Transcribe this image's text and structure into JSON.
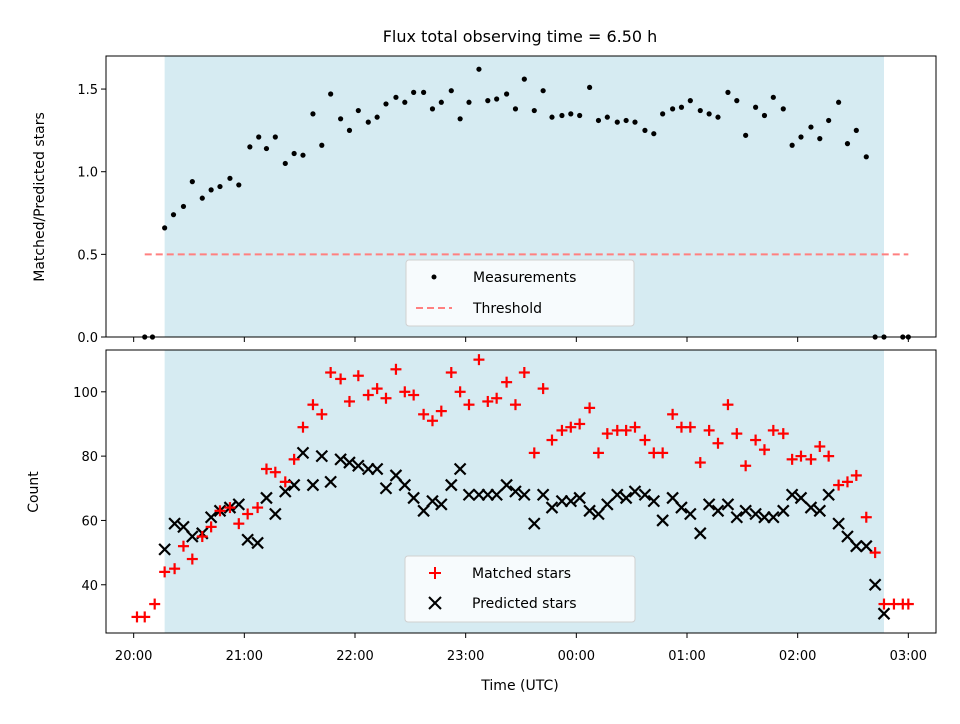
{
  "chart_data": [
    {
      "type": "scatter",
      "title": "Flux total observing time = 6.50 h",
      "xlabel": "",
      "ylabel": "Matched/Predicted stars",
      "ylim": [
        0,
        1.7
      ],
      "yticks": [
        "0.0",
        "0.5",
        "1.0",
        "1.5"
      ],
      "shaded_x_range_hours": [
        20.28,
        26.78
      ],
      "shade_color": "#add8e6",
      "series": [
        {
          "name": "Measurements",
          "marker": "dot",
          "color": "#000000",
          "x": [
            20.1,
            20.17,
            20.28,
            20.36,
            20.45,
            20.53,
            20.62,
            20.7,
            20.78,
            20.87,
            20.95,
            21.05,
            21.13,
            21.2,
            21.28,
            21.37,
            21.45,
            21.53,
            21.62,
            21.7,
            21.78,
            21.87,
            21.95,
            22.03,
            22.12,
            22.2,
            22.28,
            22.37,
            22.45,
            22.53,
            22.62,
            22.7,
            22.78,
            22.87,
            22.95,
            23.03,
            23.12,
            23.2,
            23.28,
            23.37,
            23.45,
            23.53,
            23.62,
            23.7,
            23.78,
            23.87,
            23.95,
            24.03,
            24.12,
            24.2,
            24.28,
            24.37,
            24.45,
            24.53,
            24.62,
            24.7,
            24.78,
            24.87,
            24.95,
            25.03,
            25.12,
            25.2,
            25.28,
            25.37,
            25.45,
            25.53,
            25.62,
            25.7,
            25.78,
            25.87,
            25.95,
            26.03,
            26.12,
            26.2,
            26.28,
            26.37,
            26.45,
            26.53,
            26.62,
            26.7,
            26.78,
            26.95,
            27.0
          ],
          "y": [
            0.0,
            0.0,
            0.66,
            0.74,
            0.79,
            0.94,
            0.84,
            0.89,
            0.91,
            0.96,
            0.92,
            1.15,
            1.21,
            1.14,
            1.21,
            1.05,
            1.11,
            1.1,
            1.35,
            1.16,
            1.47,
            1.32,
            1.25,
            1.37,
            1.3,
            1.33,
            1.41,
            1.45,
            1.42,
            1.48,
            1.48,
            1.38,
            1.42,
            1.49,
            1.32,
            1.42,
            1.62,
            1.43,
            1.44,
            1.47,
            1.38,
            1.56,
            1.37,
            1.49,
            1.33,
            1.34,
            1.35,
            1.34,
            1.51,
            1.31,
            1.33,
            1.3,
            1.31,
            1.3,
            1.25,
            1.23,
            1.35,
            1.38,
            1.39,
            1.43,
            1.37,
            1.35,
            1.33,
            1.48,
            1.43,
            1.22,
            1.39,
            1.34,
            1.45,
            1.38,
            1.16,
            1.21,
            1.27,
            1.2,
            1.31,
            1.42,
            1.17,
            1.25,
            1.09,
            0.0,
            0.0,
            0.0,
            0.0
          ]
        },
        {
          "name": "Threshold",
          "marker": "dashed-line",
          "color": "#ff8080",
          "x": [
            20.1,
            27.0
          ],
          "y": [
            0.5,
            0.5
          ]
        }
      ],
      "legend": "bottom-center"
    },
    {
      "type": "scatter",
      "title": "",
      "xlabel": "Time (UTC)",
      "ylabel": "Count",
      "ylim": [
        25,
        113
      ],
      "yticks": [
        "40",
        "60",
        "80",
        "100"
      ],
      "xlim": [
        19.75,
        27.25
      ],
      "xticks": [
        "20:00",
        "21:00",
        "22:00",
        "23:00",
        "00:00",
        "01:00",
        "02:00",
        "03:00"
      ],
      "xtick_values": [
        20,
        21,
        22,
        23,
        24,
        25,
        26,
        27
      ],
      "shaded_x_range_hours": [
        20.28,
        26.78
      ],
      "shade_color": "#add8e6",
      "series": [
        {
          "name": "Matched stars",
          "marker": "plus",
          "color": "#ff0000",
          "x": [
            20.03,
            20.1,
            20.19,
            20.28,
            20.37,
            20.45,
            20.53,
            20.62,
            20.7,
            20.78,
            20.87,
            20.95,
            21.03,
            21.12,
            21.2,
            21.28,
            21.37,
            21.45,
            21.53,
            21.62,
            21.7,
            21.78,
            21.87,
            21.95,
            22.03,
            22.12,
            22.2,
            22.28,
            22.37,
            22.45,
            22.53,
            22.62,
            22.7,
            22.78,
            22.87,
            22.95,
            23.03,
            23.12,
            23.2,
            23.28,
            23.37,
            23.45,
            23.53,
            23.62,
            23.7,
            23.78,
            23.87,
            23.95,
            24.03,
            24.12,
            24.2,
            24.28,
            24.37,
            24.45,
            24.53,
            24.62,
            24.7,
            24.78,
            24.87,
            24.95,
            25.03,
            25.12,
            25.2,
            25.28,
            25.37,
            25.45,
            25.53,
            25.62,
            25.7,
            25.78,
            25.87,
            25.95,
            26.03,
            26.12,
            26.2,
            26.28,
            26.37,
            26.45,
            26.53,
            26.62,
            26.7,
            26.78,
            26.87,
            26.95,
            27.0
          ],
          "y": [
            30,
            30,
            34,
            44,
            45,
            52,
            48,
            55,
            58,
            63,
            64,
            59,
            62,
            64,
            76,
            75,
            72,
            79,
            89,
            96,
            93,
            106,
            104,
            97,
            105,
            99,
            101,
            98,
            107,
            100,
            99,
            93,
            91,
            94,
            106,
            100,
            96,
            110,
            97,
            98,
            103,
            96,
            106,
            81,
            101,
            85,
            88,
            89,
            90,
            95,
            81,
            87,
            88,
            88,
            89,
            85,
            81,
            81,
            93,
            89,
            89,
            78,
            88,
            84,
            96,
            87,
            77,
            85,
            82,
            88,
            87,
            79,
            80,
            79,
            83,
            80,
            71,
            72,
            74,
            61,
            50,
            34,
            34,
            34,
            34
          ]
        },
        {
          "name": "Predicted stars",
          "marker": "x",
          "color": "#000000",
          "x": [
            20.28,
            20.37,
            20.45,
            20.53,
            20.62,
            20.7,
            20.78,
            20.87,
            20.95,
            21.03,
            21.12,
            21.2,
            21.28,
            21.37,
            21.45,
            21.53,
            21.62,
            21.7,
            21.78,
            21.87,
            21.95,
            22.03,
            22.12,
            22.2,
            22.28,
            22.37,
            22.45,
            22.53,
            22.62,
            22.7,
            22.78,
            22.87,
            22.95,
            23.03,
            23.12,
            23.2,
            23.28,
            23.37,
            23.45,
            23.53,
            23.62,
            23.7,
            23.78,
            23.87,
            23.95,
            24.03,
            24.12,
            24.2,
            24.28,
            24.37,
            24.45,
            24.53,
            24.62,
            24.7,
            24.78,
            24.87,
            24.95,
            25.03,
            25.12,
            25.2,
            25.28,
            25.37,
            25.45,
            25.53,
            25.62,
            25.7,
            25.78,
            25.87,
            25.95,
            26.03,
            26.12,
            26.2,
            26.28,
            26.37,
            26.45,
            26.53,
            26.62,
            26.7,
            26.78
          ],
          "y": [
            51,
            59,
            58,
            55,
            56,
            61,
            63,
            64,
            65,
            54,
            53,
            67,
            62,
            69,
            71,
            81,
            71,
            80,
            72,
            79,
            78,
            77,
            76,
            76,
            70,
            74,
            71,
            67,
            63,
            66,
            65,
            71,
            76,
            68,
            68,
            68,
            68,
            71,
            69,
            68,
            59,
            68,
            64,
            66,
            66,
            67,
            63,
            62,
            65,
            68,
            67,
            69,
            68,
            66,
            60,
            67,
            64,
            62,
            56,
            65,
            63,
            65,
            61,
            63,
            62,
            61,
            61,
            63,
            68,
            67,
            64,
            63,
            68,
            59,
            55,
            52,
            52,
            40,
            31
          ]
        }
      ],
      "legend": "bottom-center"
    }
  ]
}
